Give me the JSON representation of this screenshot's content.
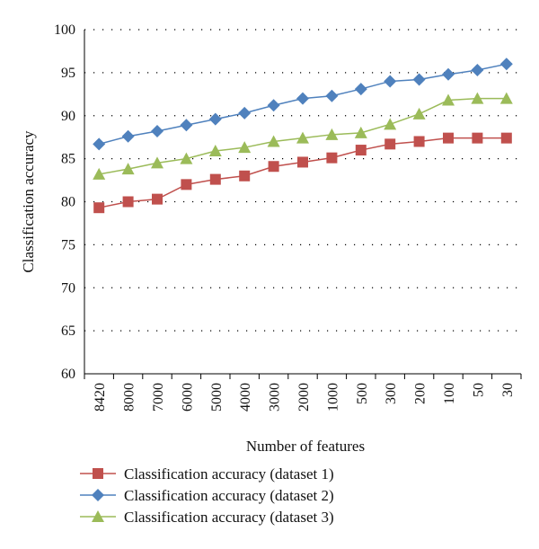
{
  "chart_data": {
    "type": "line",
    "title": "",
    "xlabel": "Number of features",
    "ylabel": "Classification accuracy",
    "categories": [
      "8420",
      "8000",
      "7000",
      "6000",
      "5000",
      "4000",
      "3000",
      "2000",
      "1000",
      "500",
      "300",
      "200",
      "100",
      "50",
      "30"
    ],
    "ylim": [
      60,
      100
    ],
    "yticks": [
      60,
      65,
      70,
      75,
      80,
      85,
      90,
      95,
      100
    ],
    "grid": true,
    "legend_position": "bottom",
    "series": [
      {
        "name": "Classification accuracy (dataset 1)",
        "color": "#c0504d",
        "marker": "square",
        "values": [
          79.3,
          80.0,
          80.3,
          82.0,
          82.6,
          83.0,
          84.1,
          84.6,
          85.1,
          86.0,
          86.7,
          87.0,
          87.4,
          87.4,
          87.4
        ]
      },
      {
        "name": "Classification accuracy (dataset 2)",
        "color": "#4f81bd",
        "marker": "diamond",
        "values": [
          86.7,
          87.6,
          88.2,
          88.9,
          89.6,
          90.3,
          91.2,
          92.0,
          92.3,
          93.1,
          94.0,
          94.2,
          94.8,
          95.3,
          96.0
        ]
      },
      {
        "name": "Classification accuracy (dataset 3)",
        "color": "#9bbb59",
        "marker": "triangle",
        "values": [
          83.2,
          83.8,
          84.5,
          85.0,
          85.9,
          86.3,
          87.0,
          87.4,
          87.8,
          88.0,
          89.0,
          90.2,
          91.8,
          92.0,
          92.0
        ]
      }
    ]
  }
}
